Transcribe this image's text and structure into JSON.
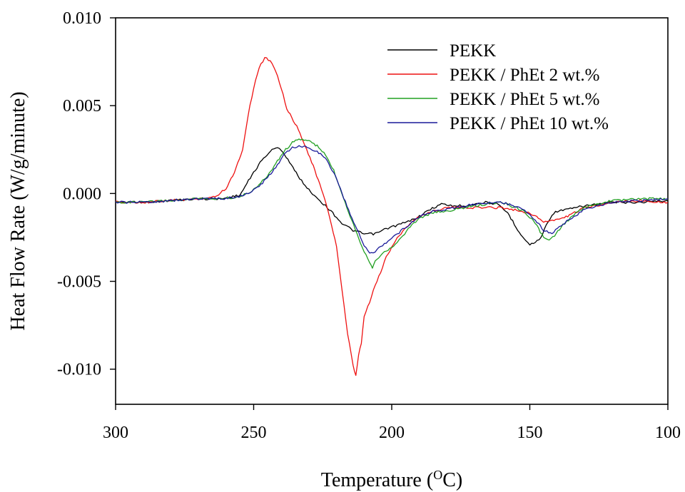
{
  "chart_data": {
    "type": "line",
    "title": "",
    "xlabel": "Temperature (",
    "xlabel_sup": "O",
    "xlabel_tail": "C)",
    "ylabel": "Heat Flow Rate (W/g/minute)",
    "xlim": [
      300,
      100
    ],
    "ylim": [
      -0.012,
      0.01
    ],
    "x_reversed": true,
    "x_ticks": [
      300,
      250,
      200,
      150,
      100
    ],
    "x_tick_labels": [
      "300",
      "250",
      "200",
      "150",
      "100"
    ],
    "y_ticks": [
      0.01,
      0.005,
      0.0,
      -0.005,
      -0.01
    ],
    "y_tick_labels": [
      "0.010",
      "0.005",
      "0.000",
      "-0.005",
      "-0.010"
    ],
    "grid": false,
    "legend_position": "top-right",
    "series": [
      {
        "name": "PEKK",
        "color": "#000000",
        "x": [
          300,
          290,
          280,
          270,
          262,
          255,
          250,
          247,
          244,
          242,
          240,
          237,
          234,
          230,
          226,
          222,
          218,
          214,
          210,
          206,
          202,
          198,
          194,
          190,
          186,
          182,
          178,
          174,
          170,
          166,
          162,
          158,
          155,
          152,
          150,
          148,
          146,
          144,
          142,
          140,
          136,
          130,
          120,
          110,
          100
        ],
        "values": [
          -0.0005,
          -0.0005,
          -0.0004,
          -0.0003,
          -0.0003,
          -0.0001,
          0.0012,
          0.0019,
          0.0024,
          0.0026,
          0.0025,
          0.0018,
          0.001,
          0.0002,
          -0.0004,
          -0.001,
          -0.0017,
          -0.0021,
          -0.0023,
          -0.0023,
          -0.002,
          -0.0018,
          -0.0016,
          -0.0013,
          -0.0009,
          -0.0006,
          -0.0007,
          -0.0007,
          -0.0006,
          -0.0005,
          -0.0006,
          -0.0011,
          -0.0019,
          -0.0026,
          -0.0029,
          -0.0028,
          -0.0025,
          -0.0018,
          -0.0012,
          -0.001,
          -0.0009,
          -0.0007,
          -0.0005,
          -0.0005,
          -0.0004
        ]
      },
      {
        "name": "PEKK / PhEt 2 wt.%",
        "color": "#ee1111",
        "x": [
          300,
          290,
          280,
          270,
          264,
          260,
          257,
          254,
          252,
          250,
          248,
          246,
          244,
          242,
          240,
          238,
          235,
          232,
          229,
          226,
          223,
          220,
          218,
          216,
          214,
          213,
          212,
          211,
          210,
          208,
          206,
          204,
          202,
          198,
          194,
          190,
          185,
          180,
          170,
          160,
          150,
          145,
          140,
          135,
          130,
          120,
          110,
          100
        ],
        "values": [
          -0.0005,
          -0.0005,
          -0.0004,
          -0.0003,
          -0.0002,
          0.0003,
          0.0012,
          0.0025,
          0.0045,
          0.006,
          0.0072,
          0.0077,
          0.0076,
          0.007,
          0.006,
          0.0048,
          0.004,
          0.003,
          0.0018,
          0.0005,
          -0.001,
          -0.003,
          -0.0055,
          -0.008,
          -0.0098,
          -0.0104,
          -0.0092,
          -0.0085,
          -0.007,
          -0.0062,
          -0.0052,
          -0.0045,
          -0.0036,
          -0.0025,
          -0.0018,
          -0.0013,
          -0.001,
          -0.0008,
          -0.0008,
          -0.0008,
          -0.0011,
          -0.0016,
          -0.0015,
          -0.0012,
          -0.0008,
          -0.0005,
          -0.0004,
          -0.0005
        ]
      },
      {
        "name": "PEKK / PhEt 5 wt.%",
        "color": "#22a022",
        "x": [
          300,
          290,
          280,
          270,
          262,
          256,
          252,
          248,
          245,
          242,
          239,
          236,
          233,
          230,
          227,
          224,
          221,
          218,
          215,
          212,
          210,
          208,
          207,
          206,
          204,
          202,
          198,
          194,
          190,
          185,
          180,
          170,
          160,
          152,
          148,
          145,
          143,
          141,
          138,
          134,
          130,
          120,
          110,
          100
        ],
        "values": [
          -0.0005,
          -0.0005,
          -0.0004,
          -0.0003,
          -0.0003,
          -0.0002,
          0.0,
          0.0005,
          0.001,
          0.0017,
          0.0024,
          0.0029,
          0.0031,
          0.003,
          0.0027,
          0.0022,
          0.0013,
          0.0,
          -0.0013,
          -0.0025,
          -0.0033,
          -0.0039,
          -0.0042,
          -0.0038,
          -0.0035,
          -0.0033,
          -0.0028,
          -0.002,
          -0.0014,
          -0.0011,
          -0.001,
          -0.0007,
          -0.0005,
          -0.001,
          -0.0017,
          -0.0025,
          -0.0027,
          -0.0024,
          -0.0018,
          -0.0012,
          -0.0008,
          -0.0004,
          -0.0003,
          -0.0003
        ]
      },
      {
        "name": "PEKK / PhEt 10 wt.%",
        "color": "#1a1a99",
        "x": [
          300,
          290,
          280,
          270,
          262,
          256,
          252,
          248,
          245,
          242,
          239,
          236,
          233,
          230,
          227,
          224,
          221,
          218,
          215,
          212,
          210,
          208,
          206,
          204,
          202,
          198,
          194,
          190,
          185,
          180,
          170,
          160,
          152,
          148,
          145,
          142,
          140,
          136,
          130,
          120,
          110,
          100
        ],
        "values": [
          -0.0005,
          -0.0005,
          -0.0004,
          -0.0003,
          -0.0003,
          -0.0002,
          0.0,
          0.0004,
          0.0009,
          0.0015,
          0.0022,
          0.0026,
          0.0027,
          0.0026,
          0.0024,
          0.002,
          0.0012,
          0.0,
          -0.0012,
          -0.0022,
          -0.003,
          -0.0034,
          -0.0033,
          -0.003,
          -0.0028,
          -0.0023,
          -0.0018,
          -0.0013,
          -0.001,
          -0.0009,
          -0.0006,
          -0.0005,
          -0.0009,
          -0.0015,
          -0.0021,
          -0.0023,
          -0.002,
          -0.0015,
          -0.0009,
          -0.0005,
          -0.0004,
          -0.0003
        ]
      }
    ]
  }
}
